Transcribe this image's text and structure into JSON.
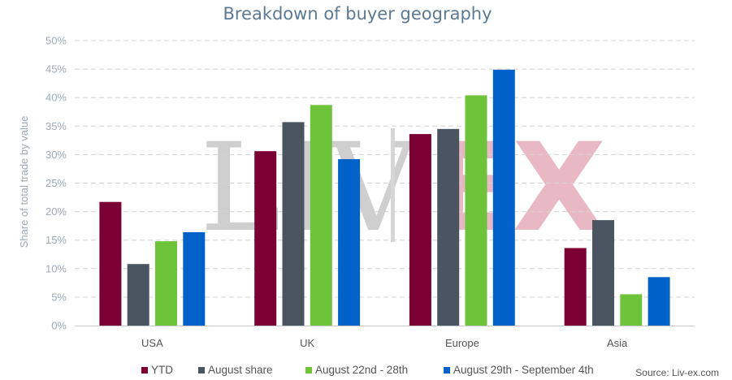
{
  "chart_data": {
    "type": "bar",
    "title": "Breakdown of buyer geography",
    "ylabel": "Share of total trade by value",
    "xlabel": "",
    "ylim": [
      0,
      50
    ],
    "yticks": [
      "0%",
      "5%",
      "10%",
      "15%",
      "20%",
      "25%",
      "30%",
      "35%",
      "40%",
      "45%",
      "50%"
    ],
    "categories": [
      "USA",
      "UK",
      "Europe",
      "Asia"
    ],
    "series": [
      {
        "name": "YTD",
        "color": "#7a0033",
        "values": [
          21.7,
          30.6,
          33.6,
          13.6
        ]
      },
      {
        "name": "August share",
        "color": "#4a5561",
        "values": [
          10.8,
          35.7,
          34.5,
          18.5
        ]
      },
      {
        "name": "August 22nd - 28th",
        "color": "#6dc43a",
        "values": [
          14.8,
          38.7,
          40.4,
          5.5
        ]
      },
      {
        "name": "August 29th - September 4th",
        "color": "#0061c8",
        "values": [
          16.4,
          29.2,
          44.9,
          8.5
        ]
      }
    ],
    "grid": true,
    "legend": "bottom",
    "source": "Source: Liv-ex.com",
    "watermark": "LIV-EX"
  }
}
